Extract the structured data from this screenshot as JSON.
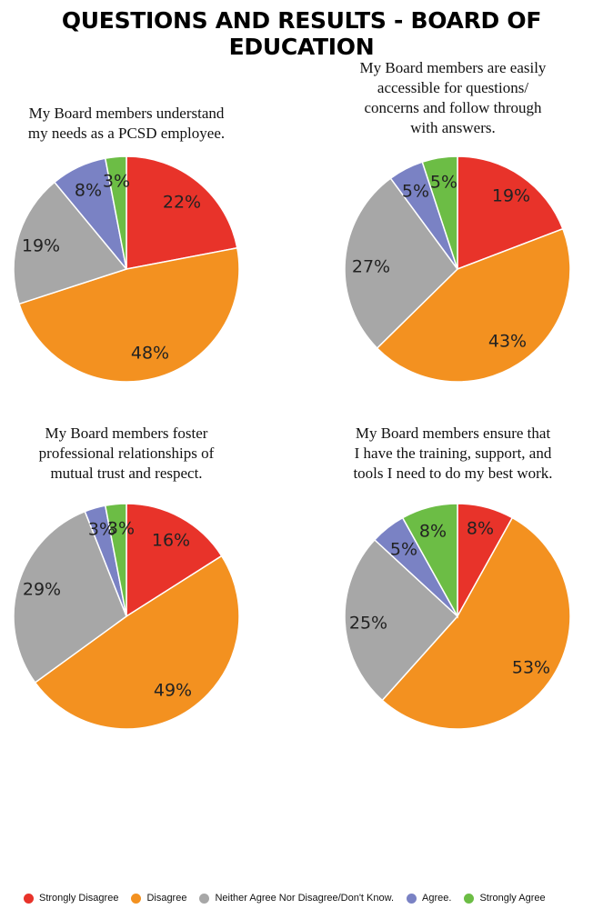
{
  "page_title": "QUESTIONS AND RESULTS - BOARD OF EDUCATION",
  "legend": [
    {
      "label": "Strongly Disagree",
      "color": "#e8332a"
    },
    {
      "label": "Disagree",
      "color": "#f39120"
    },
    {
      "label": "Neither Agree Nor Disagree/Don't Know.",
      "color": "#a7a7a7"
    },
    {
      "label": "Agree.",
      "color": "#7a82c4"
    },
    {
      "label": "Strongly Agree",
      "color": "#6cbd45"
    }
  ],
  "chart_data": [
    {
      "type": "pie",
      "title_lines": [
        "My Board members understand",
        "my needs as a PCSD employee."
      ],
      "categories": [
        "Strongly Disagree",
        "Disagree",
        "Neither Agree Nor Disagree/Don't Know.",
        "Agree.",
        "Strongly Agree"
      ],
      "values": [
        22,
        48,
        19,
        8,
        3
      ],
      "labels": [
        "22%",
        "48%",
        "19%",
        "8%",
        "3%"
      ]
    },
    {
      "type": "pie",
      "title_lines": [
        "My Board members are easily",
        "accessible for questions/",
        "concerns and follow through",
        "with answers."
      ],
      "categories": [
        "Strongly Disagree",
        "Disagree",
        "Neither Agree Nor Disagree/Don't Know.",
        "Agree.",
        "Strongly Agree"
      ],
      "values": [
        19,
        43,
        27,
        5,
        5
      ],
      "labels": [
        "19%",
        "43%",
        "27%",
        "5%",
        "5%"
      ]
    },
    {
      "type": "pie",
      "title_lines": [
        "My Board members foster",
        "professional relationships of",
        "mutual trust and respect."
      ],
      "categories": [
        "Strongly Disagree",
        "Disagree",
        "Neither Agree Nor Disagree/Don't Know.",
        "Agree.",
        "Strongly Agree"
      ],
      "values": [
        16,
        49,
        29,
        3,
        3
      ],
      "labels": [
        "16%",
        "49%",
        "29%",
        "3%",
        "3%"
      ]
    },
    {
      "type": "pie",
      "title_lines": [
        "My Board members ensure that",
        "I have the training, support, and",
        "tools I need to do my best work."
      ],
      "categories": [
        "Strongly Disagree",
        "Disagree",
        "Neither Agree Nor Disagree/Don't Know.",
        "Agree.",
        "Strongly Agree"
      ],
      "values": [
        8,
        53,
        25,
        5,
        8
      ],
      "labels": [
        "8%",
        "53%",
        "25%",
        "5%",
        "8%"
      ]
    }
  ]
}
